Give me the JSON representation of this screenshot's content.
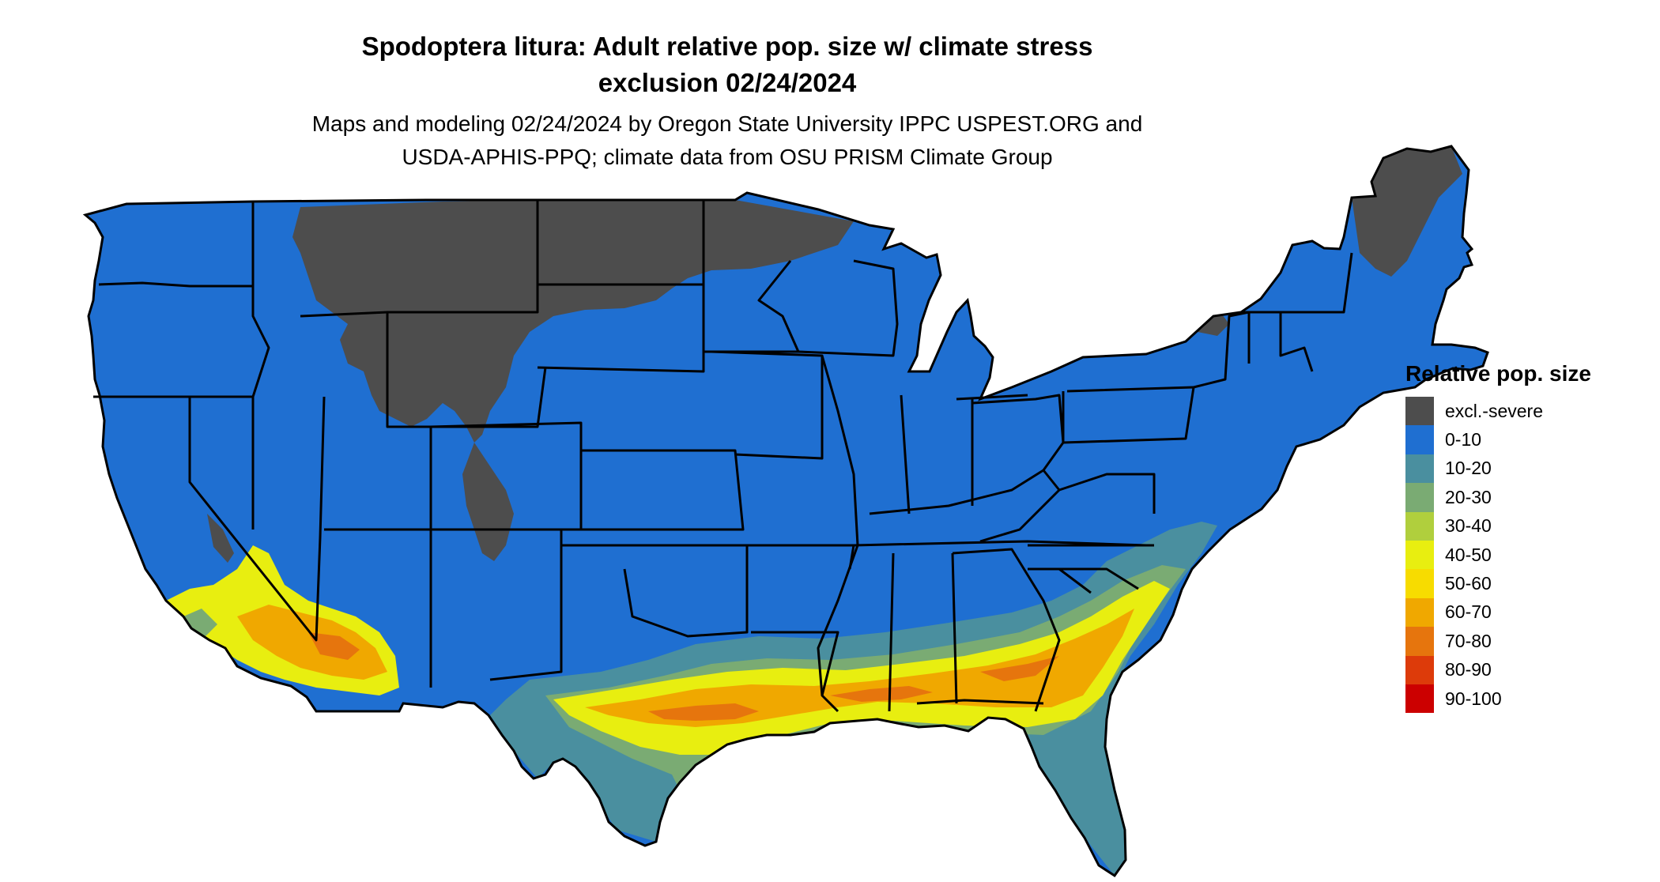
{
  "header": {
    "title_line1": "Spodoptera litura: Adult relative pop. size w/ climate stress",
    "title_line2": "exclusion 02/24/2024",
    "subtitle_line1": "Maps and modeling 02/24/2024 by Oregon State University IPPC USPEST.ORG and",
    "subtitle_line2": "USDA-APHIS-PPQ; climate data from OSU PRISM Climate Group"
  },
  "legend": {
    "title": "Relative pop. size",
    "items": [
      {
        "label": "excl.-severe",
        "color": "#4d4d4d"
      },
      {
        "label": "0-10",
        "color": "#1f6fd1"
      },
      {
        "label": "10-20",
        "color": "#4a8f9f"
      },
      {
        "label": "20-30",
        "color": "#7aab73"
      },
      {
        "label": "30-40",
        "color": "#b0cf3d"
      },
      {
        "label": "40-50",
        "color": "#e8ee10"
      },
      {
        "label": "50-60",
        "color": "#f7dc00"
      },
      {
        "label": "60-70",
        "color": "#f0a800"
      },
      {
        "label": "70-80",
        "color": "#e6750d"
      },
      {
        "label": "80-90",
        "color": "#dd3b0a"
      },
      {
        "label": "90-100",
        "color": "#cc0000"
      }
    ]
  },
  "map": {
    "name": "Contiguous United States",
    "colors": {
      "background": "#1f6fd1",
      "excluded": "#4d4d4d",
      "border": "#000000"
    }
  }
}
